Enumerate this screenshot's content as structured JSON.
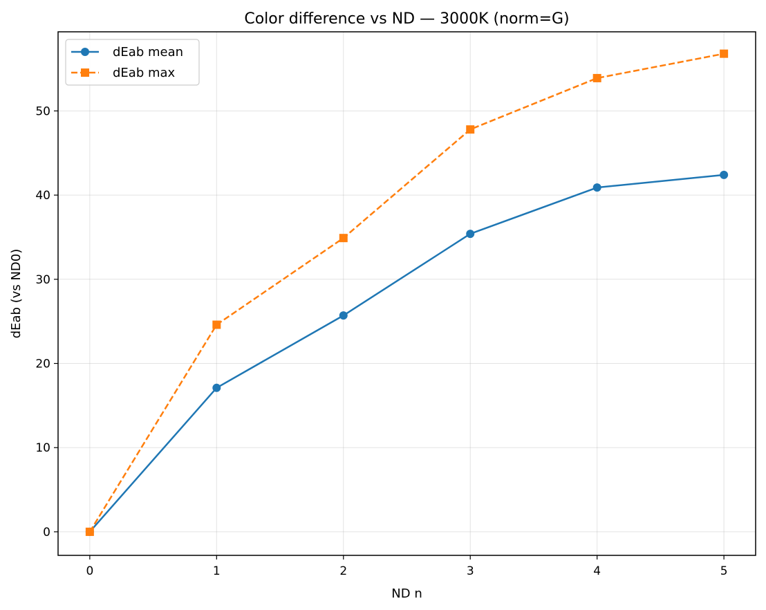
{
  "chart_data": {
    "type": "line",
    "title": "Color difference vs ND — 3000K (norm=G)",
    "xlabel": "ND n",
    "ylabel": "dEab (vs ND0)",
    "x": [
      0,
      1,
      2,
      3,
      4,
      5
    ],
    "xlim": [
      -0.25,
      5.25
    ],
    "ylim": [
      -2.8,
      59.4
    ],
    "xticks": [
      0,
      1,
      2,
      3,
      4,
      5
    ],
    "yticks": [
      0,
      10,
      20,
      30,
      40,
      50
    ],
    "grid": true,
    "legend_position": "top-left",
    "series": [
      {
        "name": "dEab mean",
        "values": [
          0,
          17.1,
          25.7,
          35.4,
          40.9,
          42.4
        ],
        "color": "#1f77b4",
        "marker": "circle",
        "linestyle": "solid"
      },
      {
        "name": "dEab max",
        "values": [
          0,
          24.6,
          34.9,
          47.8,
          53.9,
          56.8
        ],
        "color": "#ff7f0e",
        "marker": "square",
        "linestyle": "dashed"
      }
    ]
  }
}
